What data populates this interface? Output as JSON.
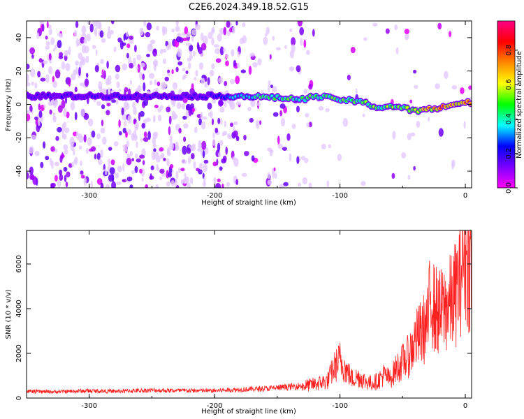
{
  "figure": {
    "title": "C2E6.2024.349.18.52.G15"
  },
  "chart_data": [
    {
      "type": "heatmap",
      "xlabel": "Height of straight line (km)",
      "ylabel": "Frequency (Hz)",
      "xlim": [
        -350,
        5
      ],
      "ylim": [
        -50,
        50
      ],
      "xticks": [
        -300,
        -200,
        -100,
        0
      ],
      "yticks": [
        -40,
        -20,
        0,
        20,
        40
      ],
      "colorbar": {
        "label": "Normalized spectral amplitude",
        "range": [
          0,
          0.97
        ],
        "ticks": [
          0.0,
          0.2,
          0.4,
          0.6,
          0.8
        ],
        "colormap": [
          "#ff00ff",
          "#7b00ff",
          "#0000ff",
          "#00ffff",
          "#00ff00",
          "#ffff00",
          "#ff8800",
          "#ff0000",
          "#ff0088"
        ]
      },
      "ridge": {
        "x": [
          -350,
          -300,
          -250,
          -200,
          -180,
          -150,
          -130,
          -120,
          -100,
          -80,
          -70,
          -60,
          -50,
          -40,
          -30,
          -20,
          -10,
          0,
          5
        ],
        "freq": [
          5,
          5,
          5,
          5,
          5,
          4,
          3,
          5,
          3,
          1,
          -2,
          -1,
          -2,
          -4,
          -3,
          -2,
          0,
          1,
          1
        ],
        "amplitude": [
          0.2,
          0.2,
          0.2,
          0.2,
          0.45,
          0.5,
          0.55,
          0.5,
          0.55,
          0.55,
          0.55,
          0.6,
          0.55,
          0.7,
          0.75,
          0.85,
          0.9,
          0.9,
          0.9
        ]
      }
    },
    {
      "type": "line",
      "xlabel": "Height of straight line (km)",
      "ylabel": "SNR (10 * v/v)",
      "xlim": [
        -350,
        5
      ],
      "ylim": [
        0,
        7500
      ],
      "xticks": [
        -300,
        -200,
        -100,
        0
      ],
      "yticks": [
        0,
        2000,
        4000,
        6000
      ],
      "series": [
        {
          "color": "#ff2020",
          "x": [
            -350,
            -330,
            -300,
            -280,
            -250,
            -230,
            -200,
            -180,
            -160,
            -140,
            -130,
            -120,
            -110,
            -105,
            -100,
            -95,
            -90,
            -85,
            -80,
            -75,
            -70,
            -65,
            -60,
            -55,
            -50,
            -45,
            -40,
            -35,
            -30,
            -27,
            -25,
            -20,
            -15,
            -10,
            -5,
            -2,
            0,
            2,
            5
          ],
          "y": [
            300,
            280,
            320,
            300,
            350,
            330,
            330,
            380,
            420,
            500,
            560,
            650,
            800,
            1400,
            1800,
            1300,
            900,
            1000,
            800,
            700,
            800,
            1100,
            900,
            1400,
            1700,
            2000,
            2700,
            3100,
            3500,
            5200,
            4200,
            4000,
            4300,
            4600,
            5400,
            6800,
            7000,
            6500,
            6200
          ]
        }
      ]
    }
  ]
}
